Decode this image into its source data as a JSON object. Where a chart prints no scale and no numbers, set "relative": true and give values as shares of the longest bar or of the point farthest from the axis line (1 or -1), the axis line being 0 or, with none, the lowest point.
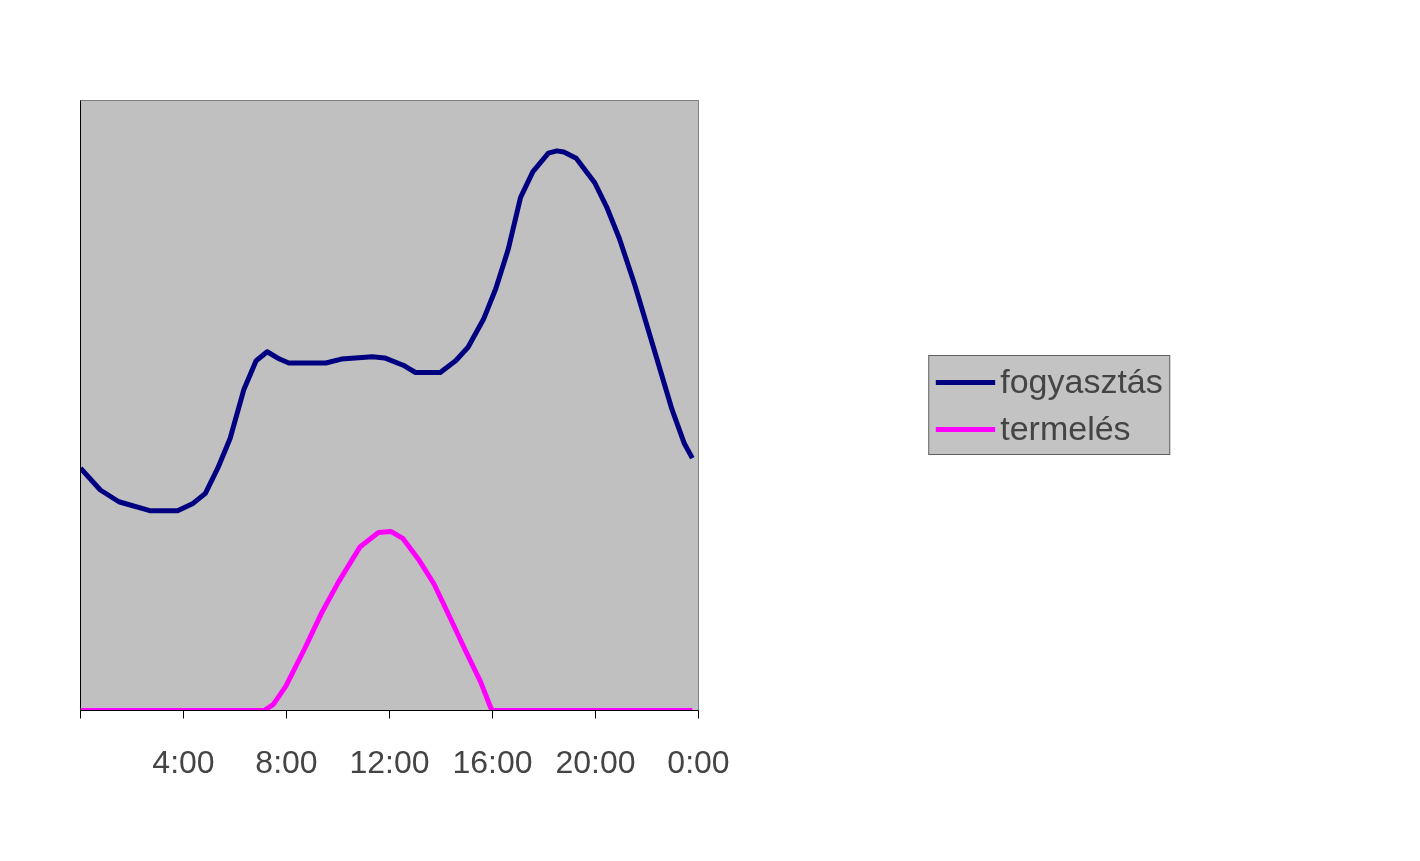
{
  "chart_data": {
    "type": "line",
    "relative": true,
    "legend": "right",
    "grid": false,
    "marker": "none",
    "line_style": "solid",
    "xlim": [
      0,
      24
    ],
    "xticks": [
      {
        "value": 0,
        "label": null
      },
      {
        "value": 4,
        "label": "4:00"
      },
      {
        "value": 8,
        "label": "8:00"
      },
      {
        "value": 12,
        "label": "12:00"
      },
      {
        "value": 16,
        "label": "16:00"
      },
      {
        "value": 20,
        "label": "20:00"
      },
      {
        "value": 24,
        "label": "0:00"
      }
    ],
    "series": [
      {
        "name": "fogyasztás",
        "color": "#000080",
        "x": [
          0,
          0.77,
          1.49,
          2.69,
          3.77,
          4.37,
          4.85,
          5.33,
          5.81,
          6.34,
          6.82,
          7.25,
          7.73,
          8.09,
          9.53,
          10.13,
          11.33,
          11.81,
          12.53,
          13.01,
          13.97,
          14.57,
          15.05,
          15.65,
          16.13,
          16.61,
          17.09,
          17.57,
          18.17,
          18.5,
          18.77,
          19.25,
          19.97,
          20.45,
          20.93,
          21.53,
          22.25,
          22.97,
          23.45,
          23.76
        ],
        "values": [
          0.433,
          0.394,
          0.373,
          0.357,
          0.357,
          0.37,
          0.388,
          0.433,
          0.486,
          0.573,
          0.625,
          0.641,
          0.628,
          0.621,
          0.621,
          0.628,
          0.632,
          0.63,
          0.617,
          0.604,
          0.604,
          0.625,
          0.649,
          0.699,
          0.754,
          0.824,
          0.917,
          0.963,
          0.996,
          1,
          0.998,
          0.987,
          0.943,
          0.898,
          0.843,
          0.76,
          0.649,
          0.538,
          0.477,
          0.451
        ]
      },
      {
        "name": "termelés",
        "color": "#ff00ff",
        "x": [
          0,
          7.13,
          7.49,
          7.97,
          8.69,
          9.36,
          10.01,
          10.85,
          11.57,
          12.05,
          12.53,
          13.13,
          13.73,
          14.33,
          14.93,
          15.53,
          15.94,
          16.0,
          23.76
        ],
        "values": [
          0,
          0,
          0.011,
          0.043,
          0.109,
          0.174,
          0.229,
          0.292,
          0.318,
          0.32,
          0.307,
          0.27,
          0.226,
          0.168,
          0.109,
          0.052,
          0.004,
          0,
          0
        ]
      }
    ]
  }
}
